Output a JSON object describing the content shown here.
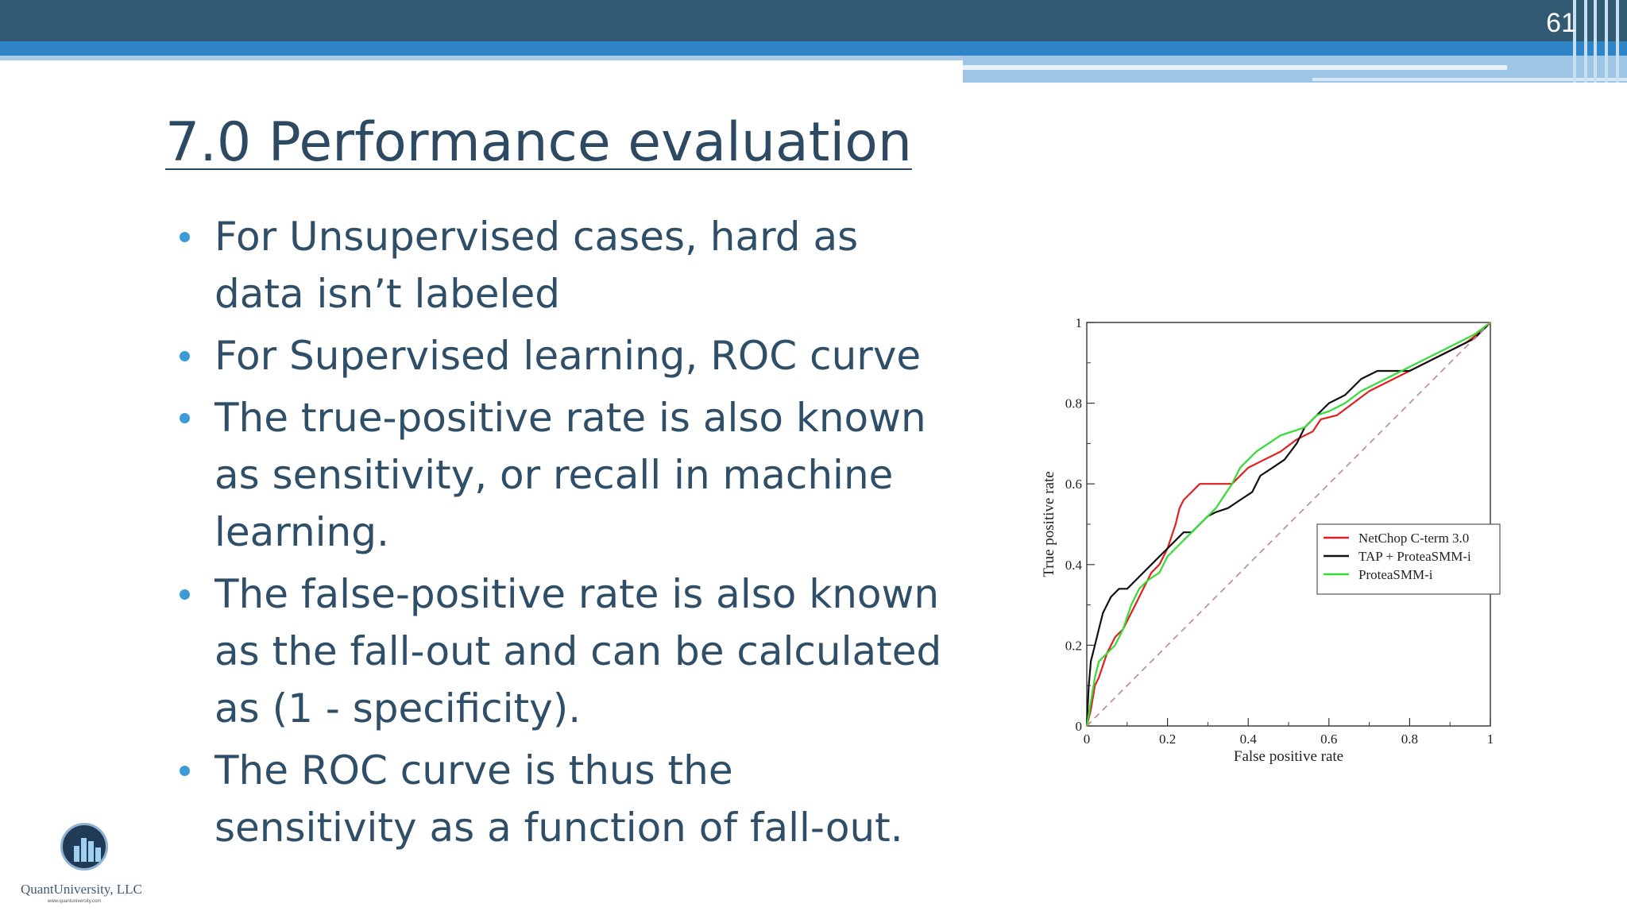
{
  "slide": {
    "page_number": "61",
    "title": "7.0 Performance evaluation",
    "bullets": [
      "For Unsupervised cases, hard as data isn’t labeled",
      "For Supervised learning, ROC curve",
      "The true-positive rate is also known as sensitivity, or recall in machine learning.",
      "The false-positive rate is also known as the fall-out and can be calculated as (1 - specificity).",
      "The ROC curve is thus the sensitivity as a function of fall-out."
    ]
  },
  "logo": {
    "name": "QuantUniversity, LLC",
    "url": "www.quantuniversity.com"
  },
  "colors": {
    "topbar": "#325a72",
    "accent_blue": "#2f84c8",
    "title_text": "#2e4a63",
    "bullet_dot": "#3a9bd6",
    "netchop": "#e02020",
    "tap": "#111111",
    "proteasmm": "#33dd33",
    "diagonal": "#c08888"
  },
  "chart_data": {
    "type": "line",
    "title": "",
    "xlabel": "False positive rate",
    "ylabel": "True positive rate",
    "xlim": [
      0,
      1
    ],
    "ylim": [
      0,
      1
    ],
    "x_ticks": [
      "0",
      "0.2",
      "0.4",
      "0.6",
      "0.8",
      "1"
    ],
    "y_ticks": [
      "0",
      "0.2",
      "0.4",
      "0.6",
      "0.8",
      "1"
    ],
    "grid": false,
    "legend_position": "right",
    "series": [
      {
        "name": "NetChop C-term 3.0",
        "color": "#e02020",
        "x": [
          0,
          0.01,
          0.02,
          0.03,
          0.05,
          0.07,
          0.09,
          0.1,
          0.12,
          0.14,
          0.16,
          0.18,
          0.2,
          0.22,
          0.23,
          0.24,
          0.26,
          0.28,
          0.3,
          0.33,
          0.36,
          0.38,
          0.4,
          0.44,
          0.48,
          0.52,
          0.56,
          0.58,
          0.62,
          0.66,
          0.7,
          0.76,
          0.82,
          0.88,
          0.94,
          0.98,
          1
        ],
        "y": [
          0,
          0.04,
          0.1,
          0.12,
          0.18,
          0.22,
          0.24,
          0.26,
          0.3,
          0.34,
          0.38,
          0.4,
          0.44,
          0.5,
          0.54,
          0.56,
          0.58,
          0.6,
          0.6,
          0.6,
          0.6,
          0.62,
          0.64,
          0.66,
          0.68,
          0.71,
          0.73,
          0.76,
          0.77,
          0.8,
          0.83,
          0.86,
          0.89,
          0.92,
          0.95,
          0.98,
          1
        ]
      },
      {
        "name": "TAP + ProteaSMM-i",
        "color": "#111111",
        "x": [
          0,
          0.005,
          0.01,
          0.02,
          0.03,
          0.04,
          0.06,
          0.08,
          0.1,
          0.12,
          0.14,
          0.16,
          0.18,
          0.2,
          0.22,
          0.24,
          0.26,
          0.28,
          0.3,
          0.32,
          0.35,
          0.38,
          0.41,
          0.43,
          0.46,
          0.49,
          0.52,
          0.54,
          0.56,
          0.6,
          0.64,
          0.68,
          0.72,
          0.76,
          0.8,
          0.84,
          0.88,
          0.92,
          0.96,
          0.98,
          1
        ],
        "y": [
          0,
          0.1,
          0.16,
          0.2,
          0.24,
          0.28,
          0.32,
          0.34,
          0.34,
          0.36,
          0.38,
          0.4,
          0.42,
          0.44,
          0.46,
          0.48,
          0.48,
          0.5,
          0.52,
          0.53,
          0.54,
          0.56,
          0.58,
          0.62,
          0.64,
          0.66,
          0.7,
          0.74,
          0.76,
          0.8,
          0.82,
          0.86,
          0.88,
          0.88,
          0.88,
          0.9,
          0.92,
          0.94,
          0.96,
          0.98,
          1
        ]
      },
      {
        "name": "ProteaSMM-i",
        "color": "#33dd33",
        "x": [
          0,
          0.01,
          0.02,
          0.03,
          0.05,
          0.07,
          0.09,
          0.11,
          0.13,
          0.15,
          0.18,
          0.2,
          0.22,
          0.24,
          0.26,
          0.28,
          0.3,
          0.32,
          0.34,
          0.36,
          0.38,
          0.4,
          0.42,
          0.45,
          0.48,
          0.51,
          0.54,
          0.57,
          0.6,
          0.64,
          0.68,
          0.72,
          0.76,
          0.8,
          0.84,
          0.88,
          0.92,
          0.96,
          1
        ],
        "y": [
          0,
          0.06,
          0.12,
          0.16,
          0.18,
          0.2,
          0.24,
          0.3,
          0.34,
          0.36,
          0.38,
          0.42,
          0.44,
          0.46,
          0.48,
          0.5,
          0.52,
          0.54,
          0.57,
          0.6,
          0.64,
          0.66,
          0.68,
          0.7,
          0.72,
          0.73,
          0.74,
          0.77,
          0.78,
          0.8,
          0.83,
          0.85,
          0.87,
          0.89,
          0.91,
          0.93,
          0.95,
          0.97,
          1
        ]
      },
      {
        "name": "",
        "color": "#c08888",
        "dashed": true,
        "x": [
          0,
          1
        ],
        "y": [
          0,
          1
        ]
      }
    ]
  }
}
